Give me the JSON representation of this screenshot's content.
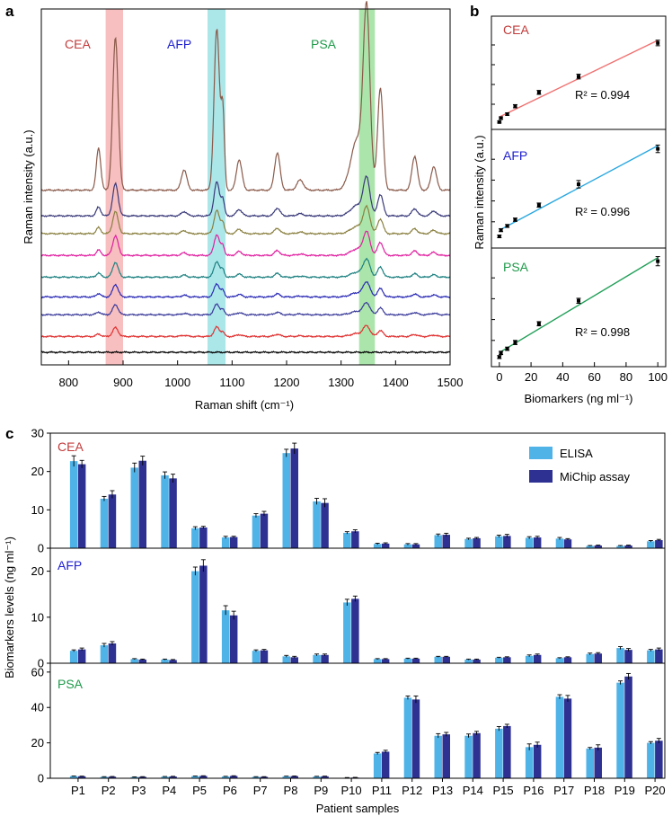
{
  "panel_labels": {
    "a": "a",
    "b": "b",
    "c": "c"
  },
  "colors": {
    "cea": "#c23b3b",
    "afp": "#2020d0",
    "psa": "#1f9a4a",
    "band_cea": "#f4a9a9",
    "band_afp": "#8fdde2",
    "band_psa": "#8fdc8f",
    "elisa": "#4fb3e8",
    "michip": "#2e3192",
    "fit_cea": "#f07070",
    "fit_afp": "#2aa8e0",
    "fit_psa": "#23a05a"
  },
  "chart_data": [
    {
      "id": "a",
      "type": "line",
      "title": "",
      "xlabel": "Raman shift (cm⁻¹)",
      "ylabel": "Raman intensity (a.u.)",
      "xlim": [
        750,
        1500
      ],
      "xticks": [
        "800",
        "900",
        "1000",
        "1100",
        "1200",
        "1300",
        "1400",
        "1500"
      ],
      "bands": [
        {
          "label": "CEA",
          "from": 868,
          "to": 900
        },
        {
          "label": "AFP",
          "from": 1055,
          "to": 1088
        },
        {
          "label": "PSA",
          "from": 1333,
          "to": 1362
        }
      ],
      "peaks": [
        {
          "x": 855,
          "w": 4,
          "base_amp": 0.25
        },
        {
          "x": 886,
          "w": 5,
          "base_amp": 0.9
        },
        {
          "x": 1012,
          "w": 5,
          "base_amp": 0.12
        },
        {
          "x": 1072,
          "w": 5,
          "base_amp": 0.95
        },
        {
          "x": 1083,
          "w": 3,
          "base_amp": 0.45
        },
        {
          "x": 1113,
          "w": 5,
          "base_amp": 0.18
        },
        {
          "x": 1183,
          "w": 5,
          "base_amp": 0.22
        },
        {
          "x": 1225,
          "w": 6,
          "base_amp": 0.06
        },
        {
          "x": 1330,
          "w": 12,
          "base_amp": 0.3
        },
        {
          "x": 1347,
          "w": 6,
          "base_amp": 1.0
        },
        {
          "x": 1372,
          "w": 5,
          "base_amp": 0.6
        },
        {
          "x": 1435,
          "w": 5,
          "base_amp": 0.2
        },
        {
          "x": 1470,
          "w": 5,
          "base_amp": 0.14
        }
      ],
      "series": [
        {
          "name": "s1",
          "color": "#000000",
          "offset": 0.0,
          "scale": 0.0
        },
        {
          "name": "s2",
          "color": "#e03030",
          "offset": 0.4,
          "scale": 0.25
        },
        {
          "name": "s3",
          "color": "#3a3a9a",
          "offset": 0.95,
          "scale": 0.28
        },
        {
          "name": "s4",
          "color": "#2a2ab5",
          "offset": 1.4,
          "scale": 0.35
        },
        {
          "name": "s5",
          "color": "#1d8080",
          "offset": 1.9,
          "scale": 0.42
        },
        {
          "name": "s6",
          "color": "#e020a0",
          "offset": 2.45,
          "scale": 0.55
        },
        {
          "name": "s7",
          "color": "#8a8040",
          "offset": 3.0,
          "scale": 0.62
        },
        {
          "name": "s8",
          "color": "#3a3a7a",
          "offset": 3.45,
          "scale": 0.9
        },
        {
          "name": "s9",
          "color": "#8a5a4a",
          "offset": 4.1,
          "scale": 4.3
        }
      ]
    },
    {
      "id": "b",
      "type": "scatter",
      "xlabel": "Biomarkers (ng ml⁻¹)",
      "ylabel": "Raman intensity (a.u.)",
      "xlim": [
        -5,
        105
      ],
      "xticks": [
        "0",
        "20",
        "40",
        "60",
        "80",
        "100"
      ],
      "panels": [
        {
          "name": "CEA",
          "r2_label": "R² = 0.994",
          "x": [
            0,
            1,
            5,
            10,
            25,
            50,
            100
          ],
          "y": [
            0.1,
            0.3,
            0.5,
            0.9,
            1.6,
            2.4,
            4.1
          ],
          "err": [
            0.05,
            0.06,
            0.06,
            0.08,
            0.1,
            0.12,
            0.14
          ]
        },
        {
          "name": "AFP",
          "r2_label": "R² = 0.996",
          "x": [
            0,
            1,
            5,
            10,
            25,
            50,
            100
          ],
          "y": [
            0.3,
            0.6,
            0.8,
            1.1,
            1.8,
            2.8,
            4.5
          ],
          "err": [
            0.06,
            0.07,
            0.07,
            0.08,
            0.1,
            0.18,
            0.18
          ]
        },
        {
          "name": "PSA",
          "r2_label": "R² = 0.998",
          "x": [
            0,
            1,
            5,
            10,
            25,
            50,
            100
          ],
          "y": [
            0.2,
            0.4,
            0.6,
            0.9,
            1.8,
            2.9,
            4.8
          ],
          "err": [
            0.07,
            0.08,
            0.08,
            0.1,
            0.1,
            0.12,
            0.22
          ]
        }
      ]
    },
    {
      "id": "c",
      "type": "bar",
      "xlabel": "Patient samples",
      "ylabel": "Biomarkers levels (ng ml⁻¹)",
      "categories": [
        "P1",
        "P2",
        "P3",
        "P4",
        "P5",
        "P6",
        "P7",
        "P8",
        "P9",
        "P10",
        "P11",
        "P12",
        "P13",
        "P14",
        "P15",
        "P16",
        "P17",
        "P18",
        "P19",
        "P20"
      ],
      "legend": [
        "ELISA",
        "MiChip assay"
      ],
      "panels": [
        {
          "name": "CEA",
          "ylim": [
            0,
            30
          ],
          "yticks": [
            "0",
            "10",
            "20",
            "30"
          ],
          "series": [
            {
              "name": "ELISA",
              "values": [
                22.7,
                12.9,
                21.0,
                19.0,
                5.2,
                2.8,
                8.5,
                24.8,
                12.2,
                4.0,
                1.1,
                1.0,
                3.4,
                2.4,
                3.1,
                2.7,
                2.5,
                0.6,
                0.6,
                1.8
              ],
              "errors": [
                1.4,
                0.6,
                1.2,
                0.9,
                0.4,
                0.3,
                0.5,
                1.0,
                0.8,
                0.3,
                0.2,
                0.2,
                0.3,
                0.2,
                0.3,
                0.3,
                0.3,
                0.1,
                0.1,
                0.2
              ]
            },
            {
              "name": "MiChip assay",
              "values": [
                21.9,
                14.0,
                22.8,
                18.2,
                5.4,
                2.9,
                9.0,
                26.0,
                11.8,
                4.4,
                1.2,
                1.0,
                3.5,
                2.6,
                3.2,
                2.8,
                2.3,
                0.7,
                0.7,
                2.1
              ],
              "errors": [
                1.0,
                1.0,
                1.2,
                1.1,
                0.3,
                0.2,
                0.6,
                1.4,
                1.1,
                0.4,
                0.2,
                0.2,
                0.4,
                0.2,
                0.4,
                0.3,
                0.2,
                0.1,
                0.1,
                0.2
              ]
            }
          ]
        },
        {
          "name": "AFP",
          "ylim": [
            0,
            25
          ],
          "yticks": [
            "0",
            "10",
            "20"
          ],
          "series": [
            {
              "name": "ELISA",
              "values": [
                2.7,
                3.9,
                0.9,
                0.8,
                20.0,
                11.5,
                2.7,
                1.5,
                1.8,
                13.2,
                0.9,
                1.0,
                1.4,
                0.8,
                1.2,
                1.6,
                1.1,
                2.0,
                3.3,
                2.8
              ],
              "errors": [
                0.2,
                0.4,
                0.1,
                0.1,
                0.9,
                1.0,
                0.2,
                0.2,
                0.2,
                0.7,
                0.1,
                0.1,
                0.1,
                0.1,
                0.1,
                0.2,
                0.1,
                0.2,
                0.3,
                0.2
              ]
            },
            {
              "name": "MiChip assay",
              "values": [
                3.0,
                4.3,
                0.8,
                0.7,
                21.2,
                10.4,
                2.8,
                1.3,
                1.8,
                14.0,
                0.9,
                1.0,
                1.4,
                0.8,
                1.3,
                1.8,
                1.3,
                2.1,
                2.9,
                3.0
              ],
              "errors": [
                0.3,
                0.4,
                0.1,
                0.1,
                1.3,
                0.9,
                0.2,
                0.2,
                0.2,
                0.6,
                0.1,
                0.1,
                0.1,
                0.1,
                0.1,
                0.2,
                0.1,
                0.2,
                0.3,
                0.3
              ]
            }
          ]
        },
        {
          "name": "PSA",
          "ylim": [
            0,
            65
          ],
          "yticks": [
            "0",
            "20",
            "40",
            "60"
          ],
          "series": [
            {
              "name": "ELISA",
              "values": [
                1.2,
                0.8,
                0.7,
                0.9,
                1.2,
                1.0,
                0.8,
                1.1,
                1.0,
                0.3,
                14.0,
                45.5,
                24.0,
                24.0,
                28.0,
                17.6,
                46.0,
                16.8,
                54.0,
                20.0
              ],
              "errors": [
                0.1,
                0.1,
                0.1,
                0.1,
                0.1,
                0.1,
                0.1,
                0.1,
                0.1,
                0.1,
                0.6,
                1.0,
                1.2,
                1.0,
                1.2,
                1.8,
                1.2,
                0.6,
                1.0,
                0.7
              ]
            },
            {
              "name": "MiChip assay",
              "values": [
                1.1,
                0.9,
                0.8,
                1.0,
                1.3,
                1.3,
                0.8,
                1.2,
                1.1,
                0.4,
                15.0,
                44.5,
                24.8,
                25.5,
                29.5,
                18.9,
                45.0,
                17.3,
                57.5,
                21.2
              ],
              "errors": [
                0.1,
                0.1,
                0.1,
                0.1,
                0.1,
                0.1,
                0.1,
                0.1,
                0.1,
                0.1,
                0.8,
                2.0,
                1.1,
                1.0,
                1.0,
                1.5,
                1.8,
                1.6,
                1.7,
                1.3
              ]
            }
          ]
        }
      ]
    }
  ]
}
